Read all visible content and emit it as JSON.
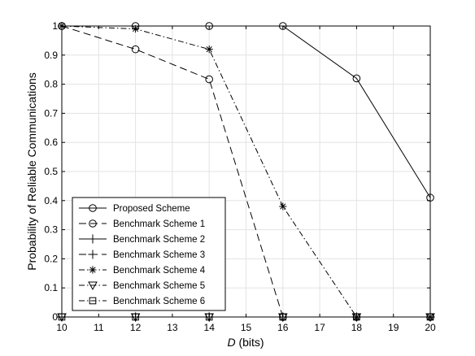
{
  "chart_data": {
    "type": "line",
    "x": [
      10,
      12,
      14,
      16,
      18,
      20
    ],
    "xticks": [
      10,
      11,
      12,
      13,
      14,
      15,
      16,
      17,
      18,
      19,
      20
    ],
    "yticks": [
      0,
      0.1,
      0.2,
      0.3,
      0.4,
      0.5,
      0.6,
      0.7,
      0.8,
      0.9,
      1
    ],
    "xlim": [
      10,
      20
    ],
    "ylim": [
      0,
      1
    ],
    "xlabel_var": "D",
    "xlabel_unit": " (bits)",
    "ylabel": "Probability of Reliable Communications",
    "grid": true,
    "legend_position": "bottom-left",
    "series": [
      {
        "name": "Proposed Scheme",
        "values": [
          1,
          1,
          1,
          1,
          0.82,
          0.41
        ],
        "dash": "solid",
        "marker": "circle"
      },
      {
        "name": "Benchmark Scheme 1",
        "values": [
          1,
          0.92,
          0.817,
          0,
          0,
          0
        ],
        "dash": "dashed",
        "marker": "circle"
      },
      {
        "name": "Benchmark Scheme 2",
        "values": [
          0,
          0,
          0,
          0,
          0,
          0
        ],
        "dash": "solid",
        "marker": "plus"
      },
      {
        "name": "Benchmark Scheme 3",
        "values": [
          0,
          0,
          0,
          0,
          0,
          0
        ],
        "dash": "dashed",
        "marker": "plus"
      },
      {
        "name": "Benchmark Scheme 4",
        "values": [
          1,
          0.99,
          0.92,
          0.38,
          0,
          0
        ],
        "dash": "dashdot",
        "marker": "star"
      },
      {
        "name": "Benchmark Scheme 5",
        "values": [
          0,
          0,
          0,
          0,
          0,
          0
        ],
        "dash": "dashdot",
        "marker": "triangle-down"
      },
      {
        "name": "Benchmark Scheme 6",
        "values": [
          0,
          0,
          0,
          0,
          0,
          0
        ],
        "dash": "dashdot",
        "marker": "square"
      }
    ],
    "colors": {
      "line": "#000000",
      "grid": "#e3e3e3",
      "background": "#ffffff"
    }
  }
}
